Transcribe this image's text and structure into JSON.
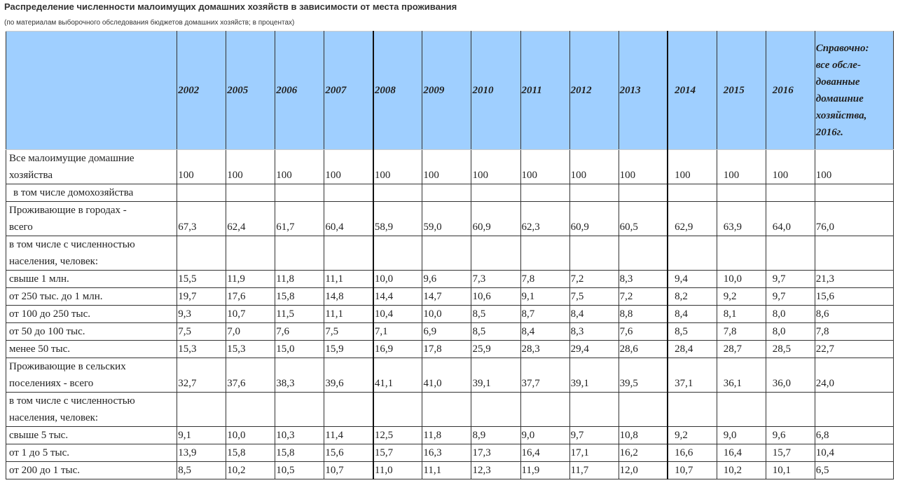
{
  "header": {
    "title": "Распределение численности малоимущих домашних хозяйств  в зависимости от места проживания",
    "subtitle": "(по материалам выборочного обследования бюджетов домашних хозяйств; в процентах)"
  },
  "table": {
    "columns": [
      "2002",
      "2005",
      "2006",
      "2007",
      "2008",
      "2009",
      "2010",
      "2011",
      "2012",
      "2013",
      "2014",
      "2015",
      "2016",
      "Справочно:\nвсе обсле-\nдованные\nдомашние\nхозяйства,\n2016г."
    ],
    "rows": [
      {
        "label": "Все малоимущие домашние\nхозяйства",
        "values": [
          "100",
          "100",
          "100",
          "100",
          "100",
          "100",
          "100",
          "100",
          "100",
          "100",
          "100",
          "100",
          "100",
          "100"
        ]
      },
      {
        "label": "в том числе домохозяйства"
      },
      {
        "label": "Проживающие в городах -\nвсего",
        "values": [
          "67,3",
          "62,4",
          "61,7",
          "60,4",
          "58,9",
          "59,0",
          "60,9",
          "62,3",
          "60,9",
          "60,5",
          "62,9",
          "63,9",
          "64,0",
          "76,0"
        ]
      },
      {
        "label": "в том числе с численностью\nнаселения, человек:"
      },
      {
        "label": "свыше 1 млн.",
        "values": [
          "15,5",
          "11,9",
          "11,8",
          "11,1",
          "10,0",
          "9,6",
          "7,3",
          "7,8",
          "7,2",
          "8,3",
          "9,4",
          "10,0",
          "9,7",
          "21,3"
        ]
      },
      {
        "label": "от 250 тыс. до 1 млн.",
        "values": [
          "19,7",
          "17,6",
          "15,8",
          "14,8",
          "14,4",
          "14,7",
          "10,6",
          "9,1",
          "7,5",
          "7,2",
          "8,2",
          "9,2",
          "9,7",
          "15,6"
        ]
      },
      {
        "label": "от 100 до 250 тыс.",
        "values": [
          "9,3",
          "10,7",
          "11,5",
          "11,1",
          "10,4",
          "10,0",
          "8,5",
          "8,7",
          "8,4",
          "8,8",
          "8,4",
          "8,1",
          "8,0",
          "8,6"
        ]
      },
      {
        "label": "от 50 до 100 тыс.",
        "values": [
          "7,5",
          "7,0",
          "7,6",
          "7,5",
          "7,1",
          "6,9",
          "8,5",
          "8,4",
          "8,3",
          "7,6",
          "8,5",
          "7,8",
          "8,0",
          "7,8"
        ]
      },
      {
        "label": "менее 50 тыс.",
        "values": [
          "15,3",
          "15,3",
          "15,0",
          "15,9",
          "16,9",
          "17,8",
          "25,9",
          "28,3",
          "29,4",
          "28,6",
          "28,4",
          "28,7",
          "28,5",
          "22,7"
        ]
      },
      {
        "label": "Проживающие  в сельских\nпоселениях - всего",
        "values": [
          "32,7",
          "37,6",
          "38,3",
          "39,6",
          "41,1",
          "41,0",
          "39,1",
          "37,7",
          "39,1",
          "39,5",
          "37,1",
          "36,1",
          "36,0",
          "24,0"
        ]
      },
      {
        "label": "в том числе с численностью\nнаселения, человек:"
      },
      {
        "label": "свыше 5 тыс.",
        "values": [
          "9,1",
          "10,0",
          "10,3",
          "11,4",
          "12,5",
          "11,8",
          "8,9",
          "9,0",
          "9,7",
          "10,8",
          "9,2",
          "9,0",
          "9,6",
          "6,8"
        ]
      },
      {
        "label": "от 1 до 5 тыс.",
        "values": [
          "13,9",
          "15,8",
          "15,8",
          "15,6",
          "15,7",
          "16,3",
          "17,3",
          "16,4",
          "17,1",
          "16,2",
          "16,6",
          "16,4",
          "15,7",
          "10,4"
        ]
      },
      {
        "label": "от 200 до 1 тыс.",
        "values": [
          "8,5",
          "10,2",
          "10,5",
          "10,7",
          "11,0",
          "11,1",
          "12,3",
          "11,9",
          "11,7",
          "12,0",
          "10,7",
          "10,2",
          "10,1",
          "6,5"
        ]
      }
    ]
  }
}
